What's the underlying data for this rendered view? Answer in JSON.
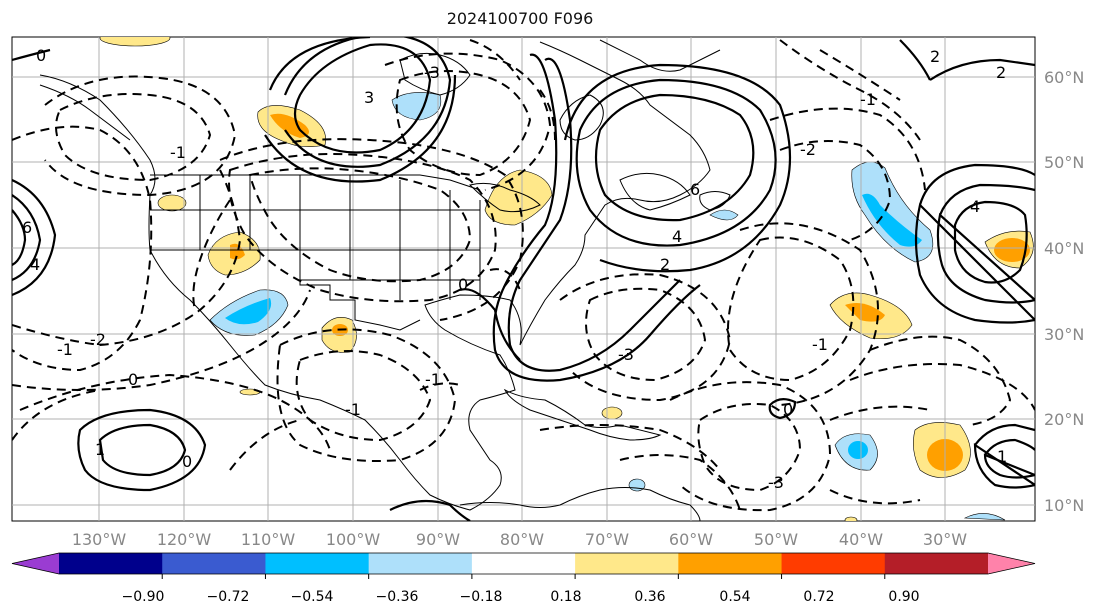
{
  "title": "2024100700 F096",
  "lon_labels": [
    "130°W",
    "120°W",
    "110°W",
    "100°W",
    "90°W",
    "80°W",
    "70°W",
    "60°W",
    "50°W",
    "40°W",
    "30°W"
  ],
  "lat_labels": [
    "60°N",
    "50°N",
    "40°N",
    "30°N",
    "20°N",
    "10°N"
  ],
  "colorbar": {
    "ticks": [
      "−0.90",
      "−0.72",
      "−0.54",
      "−0.36",
      "−0.18",
      "0.18",
      "0.36",
      "0.54",
      "0.72",
      "0.90"
    ],
    "colors": [
      "#9a3cd2",
      "#00008c",
      "#3a5bd0",
      "#00bfff",
      "#aee0fa",
      "#ffffff",
      "#ffe88a",
      "#ffa000",
      "#ff3c00",
      "#b41e28",
      "#ff82aa"
    ]
  },
  "contour_labels": {
    "solid": [
      "0",
      "3",
      "3",
      "2",
      "2",
      "3",
      "4",
      "4",
      "6",
      "6",
      "1",
      "0",
      "2",
      "1",
      "0",
      "4",
      "0",
      "0",
      "2",
      "1"
    ],
    "dashed": [
      "-1",
      "-2",
      "-3",
      "-1",
      "-2",
      "-1",
      "-1",
      "-2",
      "-3",
      "-1",
      "-1",
      "-2",
      "-3",
      "-1",
      "-2",
      "-1",
      "-1",
      "-2",
      "-1",
      "-2"
    ]
  }
}
